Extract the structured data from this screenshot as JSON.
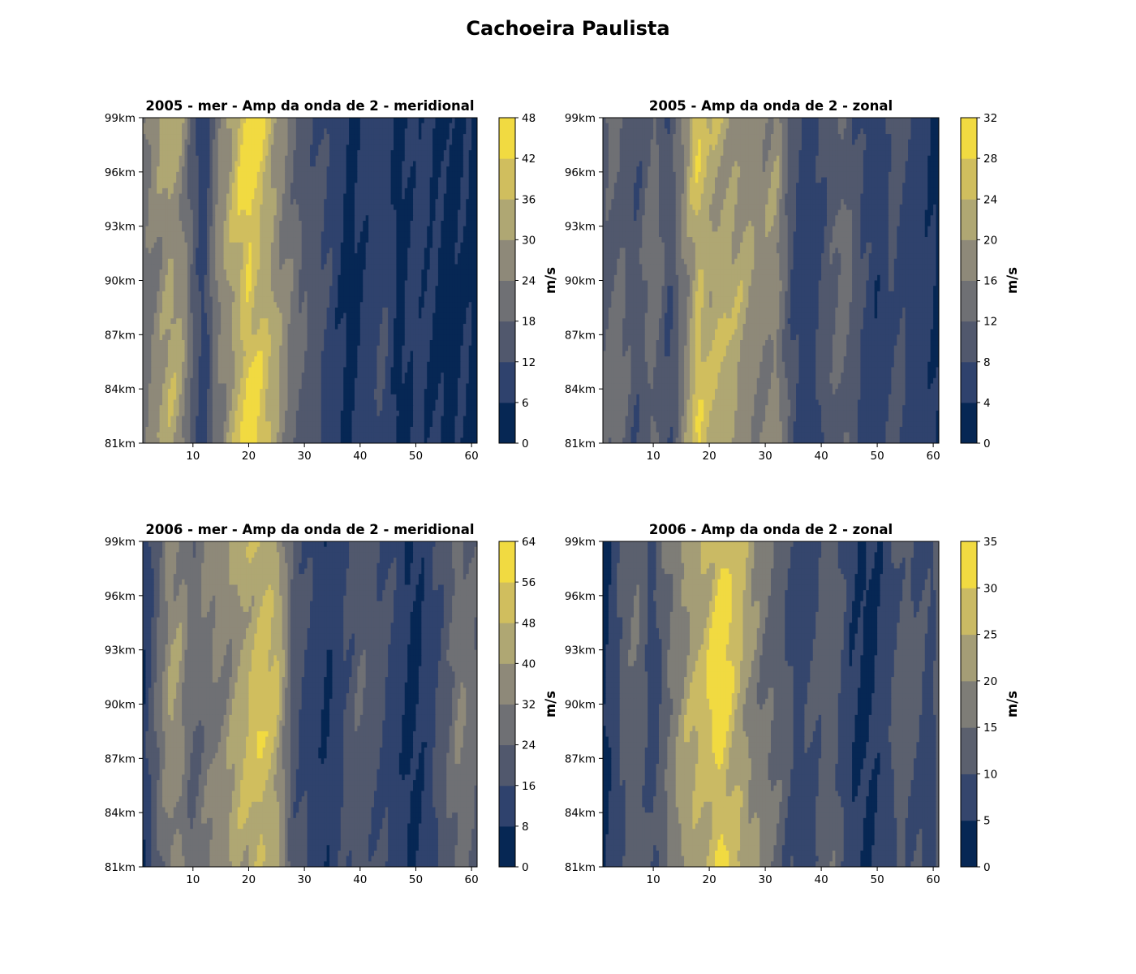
{
  "figure": {
    "title": "Cachoeira Paulista"
  },
  "chart_data": [
    {
      "type": "heatmap",
      "title": "2005 - mer - Amp da onda de 2 - meridional",
      "x_range": [
        1,
        61
      ],
      "x_ticks": [
        10,
        20,
        30,
        40,
        50,
        60
      ],
      "y_range": [
        81,
        99
      ],
      "y_ticks": [
        "81km",
        "84km",
        "87km",
        "90km",
        "93km",
        "96km",
        "99km"
      ],
      "colorbar": {
        "label": "m/s",
        "levels": [
          0,
          6,
          12,
          18,
          24,
          30,
          36,
          42,
          48
        ]
      },
      "profile": [
        [
          1,
          20
        ],
        [
          4,
          28
        ],
        [
          6,
          32
        ],
        [
          8,
          28
        ],
        [
          10,
          16
        ],
        [
          12,
          8
        ],
        [
          14,
          22
        ],
        [
          17,
          32
        ],
        [
          20,
          44
        ],
        [
          23,
          36
        ],
        [
          26,
          26
        ],
        [
          29,
          18
        ],
        [
          32,
          14
        ],
        [
          35,
          10
        ],
        [
          38,
          4
        ],
        [
          41,
          8
        ],
        [
          44,
          12
        ],
        [
          47,
          4
        ],
        [
          50,
          8
        ],
        [
          53,
          6
        ],
        [
          56,
          4
        ],
        [
          59,
          6
        ],
        [
          61,
          3
        ]
      ]
    },
    {
      "type": "heatmap",
      "title": "2005 - Amp da onda de 2 - zonal",
      "x_range": [
        1,
        61
      ],
      "x_ticks": [
        10,
        20,
        30,
        40,
        50,
        60
      ],
      "y_range": [
        81,
        99
      ],
      "y_ticks": [
        "81km",
        "84km",
        "87km",
        "90km",
        "93km",
        "96km",
        "99km"
      ],
      "colorbar": {
        "label": "m/s",
        "levels": [
          0,
          4,
          8,
          12,
          16,
          20,
          24,
          28,
          32
        ]
      },
      "profile": [
        [
          1,
          11
        ],
        [
          4,
          13
        ],
        [
          7,
          9
        ],
        [
          10,
          14
        ],
        [
          13,
          8
        ],
        [
          16,
          18
        ],
        [
          18,
          26
        ],
        [
          20,
          22
        ],
        [
          23,
          22
        ],
        [
          26,
          20
        ],
        [
          29,
          17
        ],
        [
          32,
          18
        ],
        [
          35,
          8
        ],
        [
          38,
          5
        ],
        [
          41,
          10
        ],
        [
          44,
          13
        ],
        [
          47,
          8
        ],
        [
          50,
          5
        ],
        [
          53,
          9
        ],
        [
          56,
          7
        ],
        [
          59,
          5
        ],
        [
          61,
          3
        ]
      ]
    },
    {
      "type": "heatmap",
      "title": "2006 - mer - Amp da onda de 2 - meridional",
      "x_range": [
        1,
        61
      ],
      "x_ticks": [
        10,
        20,
        30,
        40,
        50,
        60
      ],
      "y_range": [
        81,
        99
      ],
      "y_ticks": [
        "81km",
        "84km",
        "87km",
        "90km",
        "93km",
        "96km",
        "99km"
      ],
      "colorbar": {
        "label": "m/s",
        "levels": [
          0,
          8,
          16,
          24,
          32,
          40,
          48,
          56,
          64
        ]
      },
      "profile": [
        [
          1,
          8
        ],
        [
          3,
          20
        ],
        [
          6,
          38
        ],
        [
          8,
          34
        ],
        [
          10,
          24
        ],
        [
          13,
          32
        ],
        [
          16,
          36
        ],
        [
          19,
          44
        ],
        [
          22,
          52
        ],
        [
          25,
          46
        ],
        [
          28,
          20
        ],
        [
          31,
          14
        ],
        [
          34,
          8
        ],
        [
          37,
          16
        ],
        [
          40,
          22
        ],
        [
          43,
          18
        ],
        [
          46,
          14
        ],
        [
          49,
          6
        ],
        [
          52,
          10
        ],
        [
          55,
          20
        ],
        [
          58,
          30
        ],
        [
          61,
          24
        ]
      ]
    },
    {
      "type": "heatmap",
      "title": "2006 - Amp da onda de 2 - zonal",
      "x_range": [
        1,
        61
      ],
      "x_ticks": [
        10,
        20,
        30,
        40,
        50,
        60
      ],
      "y_range": [
        81,
        99
      ],
      "y_ticks": [
        "81km",
        "84km",
        "87km",
        "90km",
        "93km",
        "96km",
        "99km"
      ],
      "colorbar": {
        "label": "m/s",
        "levels": [
          0,
          5,
          10,
          15,
          20,
          25,
          30,
          35
        ]
      },
      "profile": [
        [
          1,
          3
        ],
        [
          4,
          10
        ],
        [
          7,
          14
        ],
        [
          10,
          8
        ],
        [
          13,
          16
        ],
        [
          16,
          22
        ],
        [
          19,
          26
        ],
        [
          22,
          32
        ],
        [
          24,
          28
        ],
        [
          27,
          21
        ],
        [
          30,
          16
        ],
        [
          33,
          12
        ],
        [
          36,
          8
        ],
        [
          39,
          10
        ],
        [
          42,
          14
        ],
        [
          45,
          6
        ],
        [
          48,
          4
        ],
        [
          51,
          6
        ],
        [
          54,
          12
        ],
        [
          57,
          10
        ],
        [
          60,
          8
        ],
        [
          61,
          14
        ]
      ]
    }
  ],
  "colors": {
    "colormap": "cividis",
    "axis": "#000000",
    "background": "#ffffff"
  }
}
